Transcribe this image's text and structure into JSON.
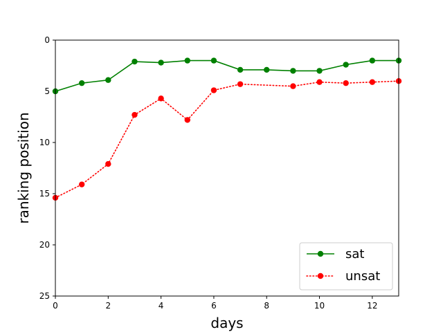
{
  "chart_data": {
    "type": "line",
    "title": "",
    "xlabel": "days",
    "ylabel": "ranking position",
    "xlim": [
      0,
      13
    ],
    "ylim": [
      25,
      0
    ],
    "y_inverted": true,
    "xticks": [
      0,
      2,
      4,
      6,
      8,
      10,
      12
    ],
    "yticks": [
      0,
      5,
      10,
      15,
      20,
      25
    ],
    "grid": false,
    "legend_position": "lower-right",
    "series": [
      {
        "name": "sat",
        "color": "#008000",
        "line_style": "solid",
        "marker": "circle",
        "x": [
          0,
          1,
          2,
          3,
          4,
          5,
          6,
          7,
          8,
          9,
          10,
          11,
          12,
          13
        ],
        "y": [
          5.0,
          4.2,
          3.9,
          2.1,
          2.2,
          2.0,
          2.0,
          2.9,
          2.9,
          3.0,
          3.0,
          2.4,
          2.0,
          2.0
        ]
      },
      {
        "name": "unsat",
        "color": "#ff0000",
        "line_style": "dotted",
        "marker": "circle",
        "x": [
          0,
          1,
          2,
          3,
          4,
          5,
          6,
          7,
          9,
          10,
          11,
          12,
          13
        ],
        "y": [
          15.4,
          14.1,
          12.1,
          7.3,
          5.7,
          7.8,
          4.9,
          4.3,
          4.5,
          4.1,
          4.2,
          4.1,
          4.0
        ]
      }
    ]
  }
}
